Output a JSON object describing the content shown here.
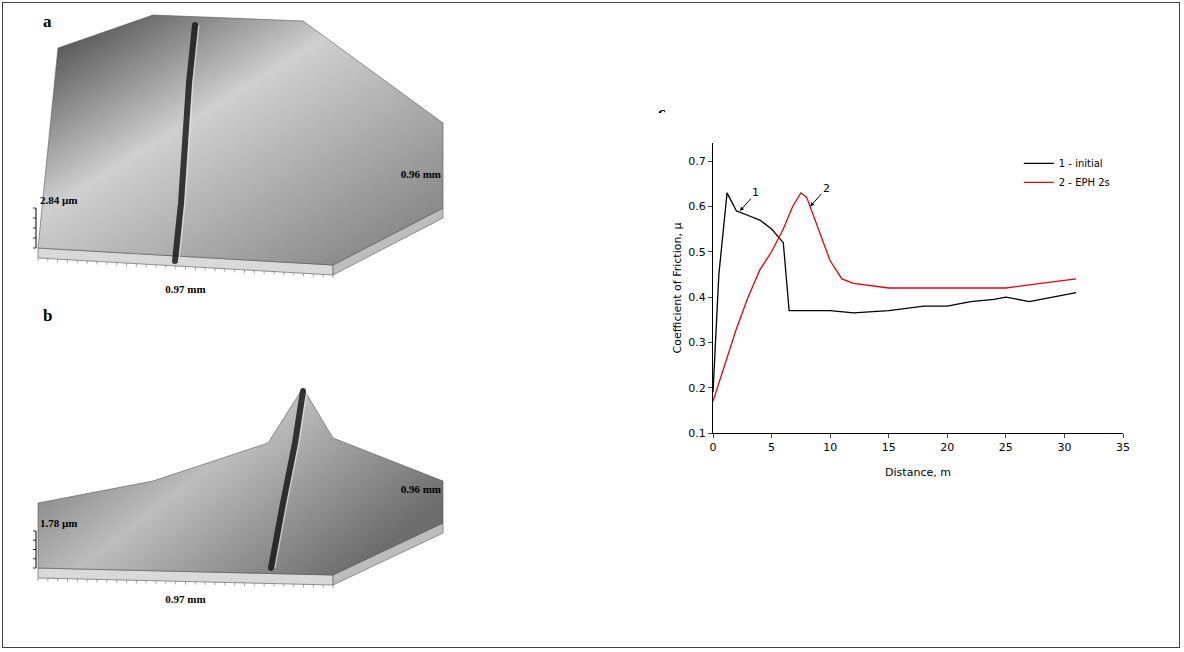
{
  "panels": [
    {
      "letter": "a",
      "height_label": "2.84 µm",
      "x_label": "0.97 mm",
      "y_label": "0.96 mm"
    },
    {
      "letter": "b",
      "height_label": "1.78 µm",
      "x_label": "0.97 mm",
      "y_label": "0.96 mm"
    }
  ],
  "chart_data": {
    "letter": "c",
    "type": "line",
    "x_label": "Distance, m",
    "y_label": "Coefficient of Friction, µ",
    "xlim": [
      0,
      35
    ],
    "xticks": [
      0,
      5,
      10,
      15,
      20,
      25,
      30,
      35
    ],
    "ylim": [
      0.1,
      0.74
    ],
    "yticks": [
      0.1,
      0.2,
      0.3,
      0.4,
      0.5,
      0.6,
      0.7
    ],
    "grid": false,
    "legend": "top right",
    "series": [
      {
        "name": "1 - initial",
        "color": "#000000",
        "x": [
          0,
          0.5,
          1.2,
          1.6,
          2,
          3,
          4,
          5,
          6,
          6.5,
          8,
          10,
          12,
          15,
          18,
          20,
          22,
          24,
          25,
          27,
          29,
          31
        ],
        "values": [
          0.19,
          0.45,
          0.63,
          0.61,
          0.59,
          0.58,
          0.57,
          0.55,
          0.52,
          0.37,
          0.37,
          0.37,
          0.365,
          0.37,
          0.38,
          0.38,
          0.39,
          0.395,
          0.4,
          0.39,
          0.4,
          0.41
        ]
      },
      {
        "name": "2 - EPH 2s",
        "color": "#e8000b",
        "x": [
          0,
          1,
          2,
          3,
          4,
          5,
          6,
          6.8,
          7.5,
          8,
          9,
          10,
          11,
          12,
          15,
          20,
          25,
          28,
          31
        ],
        "values": [
          0.17,
          0.25,
          0.33,
          0.4,
          0.46,
          0.5,
          0.55,
          0.6,
          0.63,
          0.62,
          0.55,
          0.48,
          0.44,
          0.43,
          0.42,
          0.42,
          0.42,
          0.43,
          0.44
        ]
      }
    ],
    "annotations": [
      {
        "text": "1",
        "x": 2.3,
        "y": 0.59
      },
      {
        "text": "2",
        "x": 8.3,
        "y": 0.6
      }
    ]
  }
}
